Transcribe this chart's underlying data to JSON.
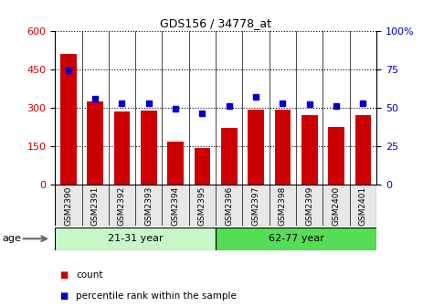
{
  "title": "GDS156 / 34778_at",
  "samples": [
    "GSM2390",
    "GSM2391",
    "GSM2392",
    "GSM2393",
    "GSM2394",
    "GSM2395",
    "GSM2396",
    "GSM2397",
    "GSM2398",
    "GSM2399",
    "GSM2400",
    "GSM2401"
  ],
  "counts": [
    510,
    325,
    285,
    288,
    168,
    143,
    220,
    293,
    293,
    270,
    225,
    270
  ],
  "percentiles": [
    74,
    56,
    53,
    53,
    49,
    46,
    51,
    57,
    53,
    52,
    51,
    53
  ],
  "bar_color": "#cc0000",
  "dot_color": "#0000cc",
  "ylim_left": [
    0,
    600
  ],
  "ylim_right": [
    0,
    100
  ],
  "yticks_left": [
    0,
    150,
    300,
    450,
    600
  ],
  "yticks_right": [
    0,
    25,
    50,
    75,
    100
  ],
  "groups": [
    {
      "label": "21-31 year",
      "start": 0,
      "end": 6,
      "color_light": "#c8f8c8",
      "color_dark": "#55ee55"
    },
    {
      "label": "62-77 year",
      "start": 6,
      "end": 12,
      "color_light": "#55ee55",
      "color_dark": "#33cc33"
    }
  ],
  "age_label": "age",
  "legend_count": "count",
  "legend_pct": "percentile rank within the sample",
  "tick_color_left": "#cc0000",
  "tick_color_right": "#0000cc",
  "grid_linestyle": "dotted",
  "bar_width": 0.6,
  "tick_label_size": 7,
  "ytick_label_size": 8
}
